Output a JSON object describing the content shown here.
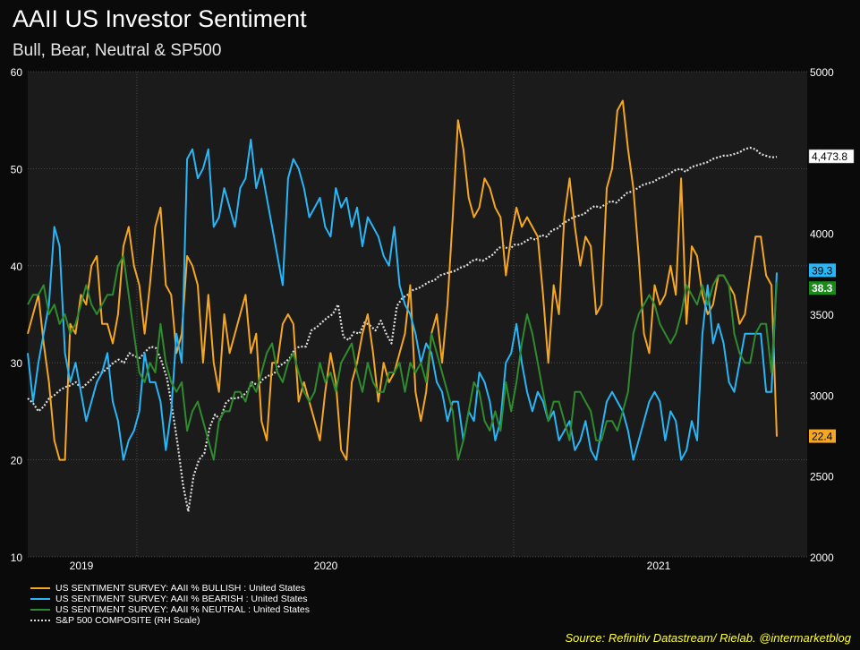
{
  "title": "AAII US Investor Sentiment",
  "subtitle": "Bull, Bear, Neutral & SP500",
  "source": "Source: Refinitiv Datastream/ Rielab. @intermarketblog",
  "chart_data": {
    "type": "line",
    "title": "AAII US Investor Sentiment",
    "subtitle": "Bull, Bear, Neutral & SP500",
    "x_tick_labels": [
      "2019",
      "2020",
      "2021"
    ],
    "left_axis": {
      "ylim": [
        10,
        60
      ],
      "ticks": [
        "10",
        "20",
        "30",
        "40",
        "50",
        "60"
      ]
    },
    "right_axis": {
      "ylim": [
        2000,
        5000
      ],
      "ticks": [
        "2000",
        "2500",
        "3000",
        "3500",
        "4000",
        "4500",
        "5000"
      ]
    },
    "grid": true,
    "legend_position": "bottom-left",
    "series": [
      {
        "name": "US SENTIMENT SURVEY: AAII % BULLISH : United States",
        "color": "#f5a623",
        "axis": "left",
        "end_label": "22.4",
        "values": [
          33,
          35,
          37,
          32,
          28,
          22,
          20,
          20,
          34,
          33,
          37,
          36,
          40,
          41,
          34,
          34,
          32,
          35,
          42,
          44,
          40,
          38,
          33,
          38,
          44,
          46,
          38,
          37,
          31,
          33,
          41,
          40,
          38,
          30,
          37,
          30,
          27,
          35,
          31,
          33,
          35,
          37,
          31,
          33,
          24,
          22,
          30,
          30,
          34,
          35,
          34,
          26,
          28,
          26,
          24,
          22,
          27,
          31,
          28,
          21,
          20,
          28,
          30,
          33,
          35,
          31,
          26,
          30,
          28,
          29,
          31,
          33,
          38,
          27,
          24,
          27,
          33,
          35,
          30,
          36,
          45,
          55,
          52,
          47,
          45,
          46,
          49,
          48,
          46,
          45,
          39,
          43,
          46,
          44,
          45,
          44,
          43,
          37,
          30,
          38,
          35,
          45,
          49,
          44,
          40,
          43,
          42,
          35,
          36,
          48,
          50,
          56,
          57,
          52,
          48,
          41,
          33,
          31,
          38,
          36,
          37,
          40,
          37,
          49,
          34,
          42,
          41,
          37,
          35,
          36,
          39,
          39,
          38,
          37,
          34,
          35,
          39,
          43,
          43,
          39,
          38,
          22.4
        ]
      },
      {
        "name": "US SENTIMENT SURVEY: AAII % BEARISH : United States",
        "color": "#29b6f6",
        "axis": "left",
        "end_label": "39.3",
        "values": [
          31,
          26,
          30,
          33,
          36,
          44,
          42,
          31,
          28,
          30,
          27,
          24,
          26,
          28,
          29,
          31,
          26,
          24,
          20,
          22,
          23,
          25,
          31,
          28,
          28,
          26,
          21,
          25,
          33,
          30,
          51,
          52,
          49,
          50,
          52,
          44,
          45,
          48,
          46,
          44,
          48,
          49,
          53,
          48,
          50,
          47,
          44,
          41,
          38,
          49,
          51,
          50,
          48,
          45,
          46,
          47,
          44,
          43,
          48,
          46,
          47,
          44,
          46,
          42,
          45,
          44,
          43,
          41,
          40,
          44,
          38,
          36,
          35,
          33,
          30,
          32,
          31,
          28,
          27,
          24,
          26,
          26,
          22,
          25,
          24,
          29,
          28,
          26,
          22,
          24,
          30,
          31,
          34,
          30,
          27,
          25,
          27,
          26,
          24,
          25,
          22,
          23,
          24,
          21,
          22,
          24,
          21,
          20,
          23,
          26,
          27,
          26,
          25,
          23,
          20,
          22,
          24,
          26,
          27,
          26,
          22,
          25,
          24,
          20,
          21,
          24,
          22,
          33,
          38,
          32,
          34,
          32,
          28,
          27,
          30,
          33,
          33,
          33,
          33,
          27,
          27,
          39.3
        ]
      },
      {
        "name": "US SENTIMENT SURVEY: AAII % NEUTRAL : United States",
        "color": "#2e8b2e",
        "axis": "left",
        "end_label": "38.3",
        "values": [
          36,
          37,
          37,
          38,
          35,
          36,
          34,
          35,
          33,
          34,
          36,
          38,
          36,
          35,
          36,
          37,
          37,
          40,
          41,
          37,
          33,
          29,
          28,
          30,
          29,
          34,
          30,
          28,
          27,
          28,
          23,
          25,
          26,
          24,
          22,
          20,
          24,
          25,
          25,
          27,
          27,
          26,
          28,
          27,
          29,
          31,
          32,
          29,
          28,
          30,
          31,
          29,
          27,
          26,
          27,
          30,
          28,
          29,
          27,
          30,
          31,
          32,
          29,
          27,
          30,
          28,
          27,
          27,
          29,
          29,
          30,
          27,
          30,
          29,
          30,
          28,
          33,
          31,
          29,
          27,
          25,
          20,
          22,
          25,
          28,
          27,
          24,
          23,
          25,
          23,
          28,
          25,
          28,
          32,
          35,
          33,
          30,
          27,
          24,
          26,
          26,
          24,
          22,
          27,
          27,
          26,
          25,
          22,
          22,
          24,
          24,
          23,
          25,
          27,
          33,
          35,
          36,
          37,
          36,
          34,
          33,
          32,
          33,
          35,
          38,
          37,
          36,
          38,
          36,
          38,
          39,
          39,
          38,
          33,
          31,
          30,
          30,
          33,
          34,
          34,
          29,
          38.3
        ]
      },
      {
        "name": "S&P 500 COMPOSITE (RH Scale)",
        "color": "#dddddd",
        "axis": "right",
        "dashed": true,
        "end_label": "4,473.8",
        "values": [
          2980,
          2950,
          2900,
          2930,
          2980,
          3000,
          3030,
          3050,
          3060,
          3080,
          3040,
          3070,
          3100,
          3140,
          3140,
          3170,
          3200,
          3220,
          3200,
          3260,
          3240,
          3230,
          3270,
          3300,
          3290,
          3210,
          3110,
          2920,
          2700,
          2450,
          2280,
          2500,
          2600,
          2640,
          2800,
          2880,
          2850,
          2950,
          2980,
          2980,
          2990,
          3020,
          3080,
          3060,
          3100,
          3120,
          3130,
          3180,
          3200,
          3230,
          3290,
          3300,
          3300,
          3400,
          3420,
          3450,
          3480,
          3500,
          3560,
          3360,
          3340,
          3390,
          3380,
          3450,
          3430,
          3400,
          3460,
          3380,
          3320,
          3550,
          3600,
          3620,
          3650,
          3660,
          3680,
          3700,
          3710,
          3740,
          3750,
          3760,
          3770,
          3790,
          3800,
          3830,
          3840,
          3830,
          3850,
          3870,
          3910,
          3920,
          3900,
          3930,
          3930,
          3950,
          3970,
          3960,
          3990,
          3980,
          4020,
          4030,
          4060,
          4080,
          4100,
          4110,
          4120,
          4150,
          4170,
          4160,
          4180,
          4200,
          4190,
          4220,
          4250,
          4260,
          4280,
          4300,
          4310,
          4320,
          4340,
          4350,
          4370,
          4390,
          4400,
          4380,
          4410,
          4420,
          4430,
          4440,
          4460,
          4470,
          4480,
          4480,
          4490,
          4500,
          4520,
          4530,
          4520,
          4490,
          4480,
          4470,
          4473.8
        ]
      }
    ]
  }
}
